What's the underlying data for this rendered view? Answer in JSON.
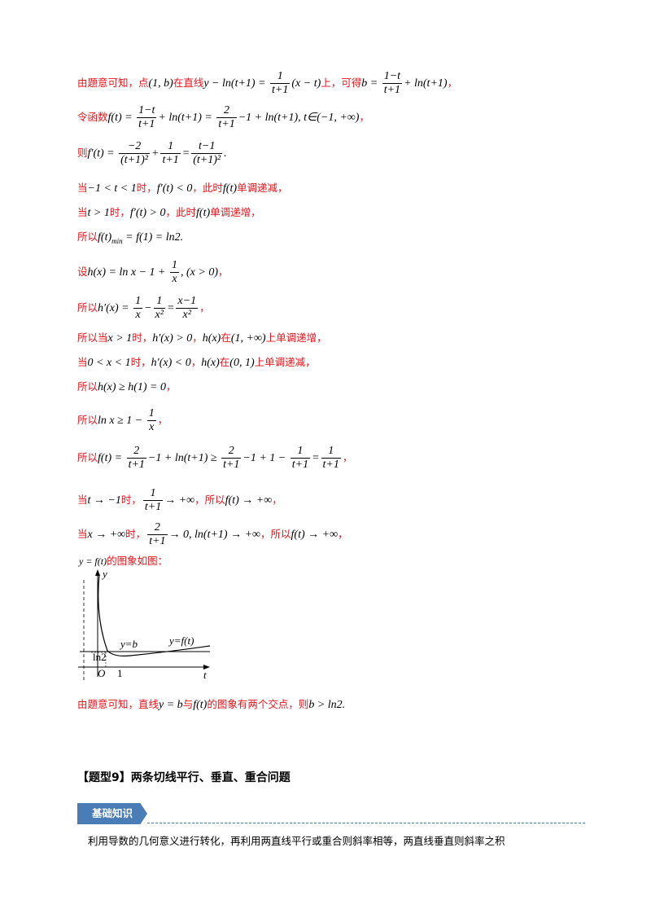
{
  "lines": [
    {
      "id": "l1",
      "text": "由题意可知，点(1, b)在直线y − ln(t+1) = 1/(t+1)·(x − t)上，可得b = (1−t)/(t+1) + ln(t+1)，"
    },
    {
      "id": "l2",
      "text": "令函数f(t) = (1−t)/(t+1) + ln(t+1) = 2/(t+1) − 1 + ln(t+1), t∈(−1, +∞)，"
    },
    {
      "id": "l3",
      "text": "则f′(t) = −2/(t+1)² + 1/(t+1) = (t−1)/(t+1)²."
    },
    {
      "id": "l4",
      "text": "当−1 < t < 1时，f′(t) < 0，此时f(t)单调递减，"
    },
    {
      "id": "l5",
      "text": "当t > 1时，f′(t) > 0，此时f(t)单调递增，"
    },
    {
      "id": "l6",
      "text": "所以f(t)min = f(1) = ln2."
    },
    {
      "id": "l7",
      "text": "设h(x) = ln x − 1 + 1/x, (x > 0)，"
    },
    {
      "id": "l8",
      "text": "所以h′(x) = 1/x − 1/x² = (x−1)/x²，"
    },
    {
      "id": "l9",
      "text": "所以当x > 1时，h′(x) > 0，h(x)在(1, +∞)上单调递增，"
    },
    {
      "id": "l10",
      "text": "当0 < x < 1时，h′(x) < 0，h(x)在(0, 1)上单调递减，"
    },
    {
      "id": "l11",
      "text": "所以h(x) ≥ h(1) = 0，"
    },
    {
      "id": "l12",
      "text": "所以ln x ≥ 1 − 1/x，"
    },
    {
      "id": "l13",
      "text": "所以f(t) = 2/(t+1) − 1 + ln(t+1) ≥ 2/(t+1) − 1 + 1 − 1/(t+1) = 1/(t+1)，"
    },
    {
      "id": "l14",
      "text": "当t → −1时，1/(t+1) → +∞，所以f(t) → +∞，"
    },
    {
      "id": "l15",
      "text": "当x → +∞时，2/(t+1) → 0, ln(t+1) → +∞，所以f(t) → +∞，"
    },
    {
      "id": "l16",
      "text": "由题意可知，直线y = b与f(t)的图象有两个交点，则b > ln2."
    }
  ],
  "graph": {
    "caption": "y = f(t)的图象如图：",
    "labels": {
      "y_axis": "y",
      "t_axis": "t",
      "origin": "O",
      "one": "1",
      "ln2": "ln2",
      "line_b": "y=b",
      "curve": "y=f(t)"
    }
  },
  "section": {
    "title": "【题型9】两条切线平行、垂直、重合问题",
    "badge": "基础知识",
    "body": "利用导数的几何意义进行转化，再利用两直线平行或重合则斜率相等，两直线垂直则斜率之积"
  }
}
